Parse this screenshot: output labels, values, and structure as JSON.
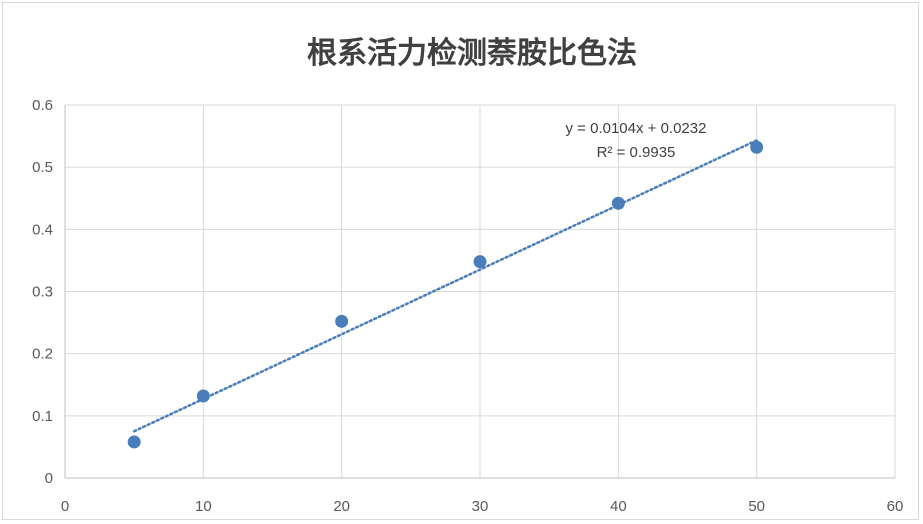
{
  "chart_data": {
    "type": "scatter",
    "title": "根系活力检测萘胺比色法",
    "xlabel": "",
    "ylabel": "",
    "xlim": [
      0,
      60
    ],
    "ylim": [
      0,
      0.6
    ],
    "x_ticks": [
      0,
      10,
      20,
      30,
      40,
      50,
      60
    ],
    "y_ticks": [
      0,
      0.1,
      0.2,
      0.3,
      0.4,
      0.5,
      0.6
    ],
    "x_tick_labels": [
      "0",
      "10",
      "20",
      "30",
      "40",
      "50",
      "60"
    ],
    "y_tick_labels": [
      "0",
      "0.1",
      "0.2",
      "0.3",
      "0.4",
      "0.5",
      "0.6"
    ],
    "grid": true,
    "legend": "none",
    "series": [
      {
        "x": [
          5,
          10,
          20,
          30,
          40,
          50
        ],
        "y": [
          0.058,
          0.132,
          0.252,
          0.348,
          0.442,
          0.532
        ],
        "color": "#4a7ebb"
      }
    ],
    "trendline": {
      "type": "linear",
      "slope": 0.0104,
      "intercept": 0.0232,
      "x_range": [
        5,
        50
      ],
      "style": "dotted",
      "color": "#4a7ebb",
      "equation": "y = 0.0104x + 0.0232",
      "r_squared": "R² = 0.9935"
    }
  }
}
